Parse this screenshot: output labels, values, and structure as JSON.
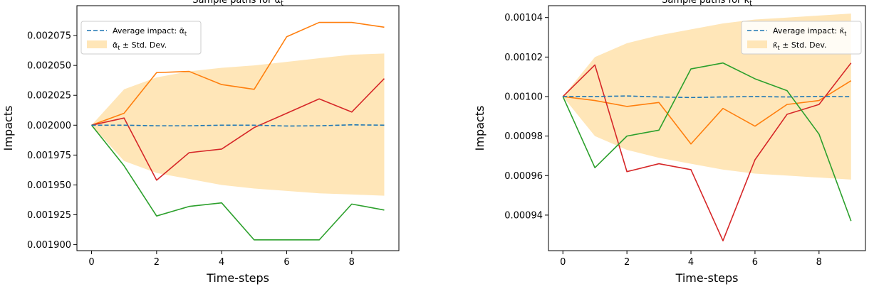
{
  "chart_data": [
    {
      "type": "line",
      "title": "Sample paths for α",
      "title_sub": "t",
      "xlabel": "Time-steps",
      "ylabel": "Impacts",
      "x": [
        0,
        1,
        2,
        3,
        4,
        5,
        6,
        7,
        8,
        9
      ],
      "xlim": [
        -0.45,
        9.45
      ],
      "ylim": [
        0.001895,
        0.0021
      ],
      "xticks": [
        0,
        2,
        4,
        6,
        8
      ],
      "yticks": [
        0.0019,
        0.001925,
        0.00195,
        0.001975,
        0.002,
        0.002025,
        0.00205,
        0.002075
      ],
      "ytick_labels": [
        "0.001900",
        "0.001925",
        "0.001950",
        "0.001975",
        "0.002000",
        "0.002025",
        "0.002050",
        "0.002075"
      ],
      "legend_position": "top-left",
      "legend": {
        "mean_label": "Average impact: ᾱ",
        "mean_sub": "t",
        "band_label_pre": "ᾱ",
        "band_sub": "t",
        "band_label_post": " ± Std. Dev."
      },
      "band": {
        "lower": [
          0.002,
          0.00197,
          0.00196,
          0.001955,
          0.00195,
          0.001947,
          0.001945,
          0.001943,
          0.001942,
          0.001941
        ],
        "upper": [
          0.002,
          0.00203,
          0.00204,
          0.002045,
          0.002048,
          0.00205,
          0.002053,
          0.002056,
          0.002059,
          0.00206
        ],
        "color": "#ffe6b8"
      },
      "mean": {
        "values": [
          0.002,
          0.002,
          0.0019995,
          0.0019995,
          0.002,
          0.002,
          0.0019993,
          0.0019995,
          0.0020003,
          0.002
        ],
        "color": "#1f77b4"
      },
      "series": [
        {
          "values": [
            0.002,
            0.00201,
            0.002044,
            0.002045,
            0.002034,
            0.00203,
            0.002074,
            0.002086,
            0.002086,
            0.002082
          ],
          "color": "#ff7f0e"
        },
        {
          "values": [
            0.002,
            0.002006,
            0.001954,
            0.001977,
            0.00198,
            0.001998,
            0.00201,
            0.002022,
            0.002011,
            0.002039
          ],
          "color": "#d62728"
        },
        {
          "values": [
            0.002,
            0.001966,
            0.001924,
            0.001932,
            0.001935,
            0.001904,
            0.001904,
            0.001904,
            0.001934,
            0.001929
          ],
          "color": "#2ca02c"
        }
      ]
    },
    {
      "type": "line",
      "title": "Sample paths for κ",
      "title_sub": "t",
      "xlabel": "Time-steps",
      "ylabel": "Impacts",
      "x": [
        0,
        1,
        2,
        3,
        4,
        5,
        6,
        7,
        8,
        9
      ],
      "xlim": [
        -0.45,
        9.45
      ],
      "ylim": [
        0.000922,
        0.001046
      ],
      "xticks": [
        0,
        2,
        4,
        6,
        8
      ],
      "yticks": [
        0.00094,
        0.00096,
        0.00098,
        0.001,
        0.00102,
        0.00104
      ],
      "ytick_labels": [
        "0.00094",
        "0.00096",
        "0.00098",
        "0.00100",
        "0.00102",
        "0.00104"
      ],
      "legend_position": "top-right",
      "legend": {
        "mean_label": "Average impact: κ̄",
        "mean_sub": "t",
        "band_label_pre": "κ̄",
        "band_sub": "t",
        "band_label_post": " ± Std. Dev."
      },
      "band": {
        "lower": [
          0.001,
          0.00098,
          0.000973,
          0.000969,
          0.000966,
          0.000963,
          0.000961,
          0.00096,
          0.000959,
          0.000958
        ],
        "upper": [
          0.001,
          0.00102,
          0.001027,
          0.001031,
          0.001034,
          0.001037,
          0.001039,
          0.00104,
          0.001041,
          0.001042
        ],
        "color": "#ffe6b8"
      },
      "mean": {
        "values": [
          0.001,
          0.001,
          0.0010003,
          0.0009998,
          0.0009995,
          0.0009998,
          0.001,
          0.0009998,
          0.0010001,
          0.0009999
        ],
        "color": "#1f77b4"
      },
      "series": [
        {
          "values": [
            0.001,
            0.000998,
            0.000995,
            0.000997,
            0.000976,
            0.000994,
            0.000985,
            0.000996,
            0.000998,
            0.001008
          ],
          "color": "#ff7f0e"
        },
        {
          "values": [
            0.001,
            0.001016,
            0.000962,
            0.000966,
            0.000963,
            0.000927,
            0.000968,
            0.000991,
            0.000996,
            0.001017
          ],
          "color": "#d62728"
        },
        {
          "values": [
            0.001,
            0.000964,
            0.00098,
            0.000983,
            0.001014,
            0.001017,
            0.001009,
            0.001003,
            0.000981,
            0.000937
          ],
          "color": "#2ca02c"
        }
      ]
    }
  ]
}
